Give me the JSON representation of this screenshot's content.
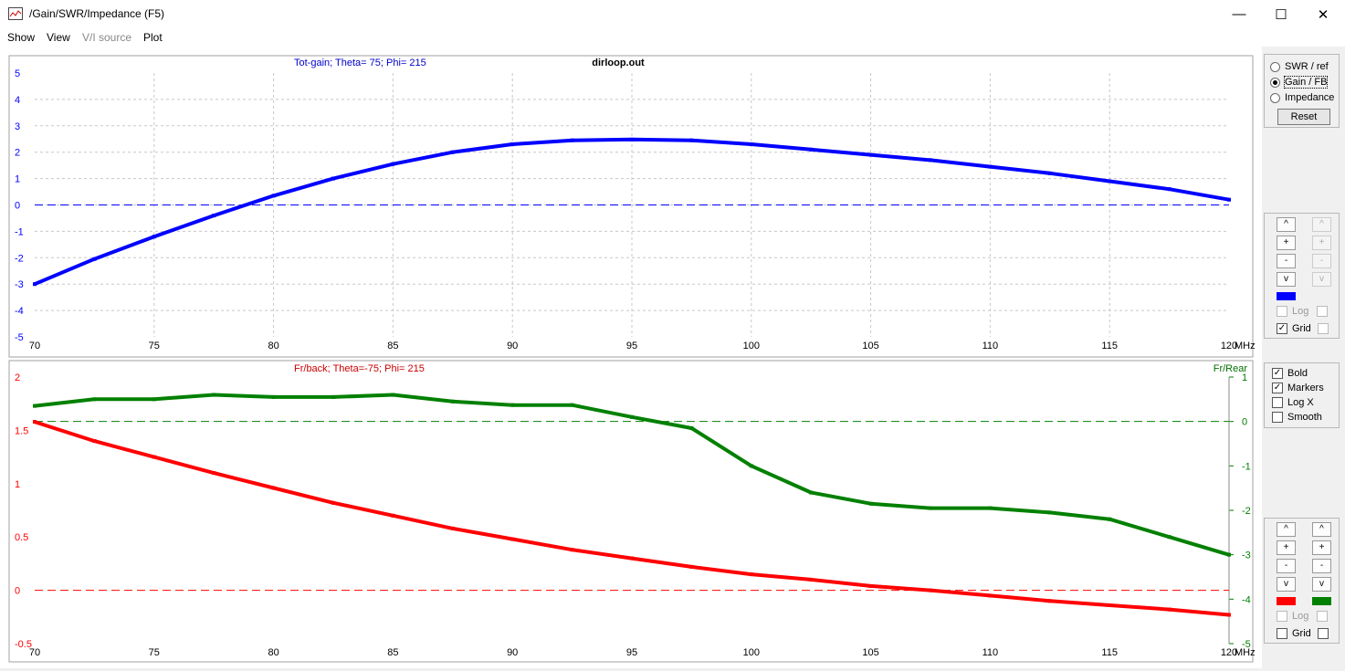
{
  "window": {
    "title": "/Gain/SWR/Impedance (F5)",
    "minimize_icon": "minimize-icon",
    "maximize_icon": "maximize-icon",
    "close_icon": "close-icon"
  },
  "menu": {
    "show": "Show",
    "view": "View",
    "vi_source": "V/I source",
    "plot": "Plot"
  },
  "plot": {
    "filename": "dirloop.out"
  },
  "chart_data": [
    {
      "type": "line",
      "title": "Tot-gain; Theta= 75; Phi= 215",
      "xlabel": "MHz",
      "xlim": [
        70,
        120
      ],
      "ylim": [
        -5,
        5
      ],
      "x_ticks": [
        "70",
        "75",
        "80",
        "85",
        "90",
        "95",
        "100",
        "105",
        "110",
        "115",
        "120"
      ],
      "y_ticks": [
        "5",
        "4",
        "3",
        "2",
        "1",
        "0",
        "-1",
        "-2",
        "-3",
        "-4",
        "-5"
      ],
      "grid": true,
      "colors": {
        "series": "#0000ff"
      },
      "series": [
        {
          "x": [
            70,
            72.5,
            75,
            77.5,
            80,
            82.5,
            85,
            87.5,
            90,
            92.5,
            95,
            97.5,
            100,
            102.5,
            105,
            107.5,
            110,
            112.5,
            115,
            117.5,
            120
          ],
          "values": [
            -3.0,
            -2.05,
            -1.2,
            -0.4,
            0.35,
            1.0,
            1.55,
            2.0,
            2.3,
            2.45,
            2.48,
            2.45,
            2.3,
            2.1,
            1.9,
            1.7,
            1.45,
            1.2,
            0.9,
            0.6,
            0.2
          ]
        }
      ]
    },
    {
      "type": "line",
      "title": "Fr/back; Theta=-75; Phi= 215",
      "right_axis_label": "Fr/Rear",
      "xlabel": "MHz",
      "xlim": [
        70,
        120
      ],
      "ylim": [
        -0.5,
        2
      ],
      "y2lim": [
        -5,
        1
      ],
      "x_ticks": [
        "70",
        "75",
        "80",
        "85",
        "90",
        "95",
        "100",
        "105",
        "110",
        "115",
        "120"
      ],
      "y_ticks": [
        "2",
        "1.5",
        "1",
        "0.5",
        "0",
        "-0.5"
      ],
      "y2_ticks": [
        "1",
        "0",
        "-1",
        "-2",
        "-3",
        "-4",
        "-5"
      ],
      "grid": false,
      "colors": {
        "left": "#ff0000",
        "right": "#008000"
      },
      "series": [
        {
          "axis": "left",
          "x": [
            70,
            72.5,
            75,
            77.5,
            80,
            82.5,
            85,
            87.5,
            90,
            92.5,
            95,
            97.5,
            100,
            102.5,
            105,
            107.5,
            110,
            112.5,
            115,
            117.5,
            120
          ],
          "values": [
            1.58,
            1.4,
            1.25,
            1.1,
            0.96,
            0.82,
            0.7,
            0.58,
            0.48,
            0.38,
            0.3,
            0.22,
            0.15,
            0.1,
            0.04,
            0.0,
            -0.05,
            -0.1,
            -0.14,
            -0.18,
            -0.23
          ]
        },
        {
          "axis": "right",
          "x": [
            70,
            72.5,
            75,
            77.5,
            80,
            82.5,
            85,
            87.5,
            90,
            92.5,
            95,
            97.5,
            100,
            102.5,
            105,
            107.5,
            110,
            112.5,
            115,
            117.5,
            120
          ],
          "values": [
            0.35,
            0.5,
            0.5,
            0.6,
            0.55,
            0.55,
            0.6,
            0.45,
            0.37,
            0.37,
            0.1,
            -0.15,
            -1.0,
            -1.6,
            -1.85,
            -1.95,
            -1.95,
            -2.05,
            -2.2,
            -2.6,
            -3.0
          ]
        }
      ]
    }
  ],
  "mode_panel": {
    "options": [
      {
        "label": "SWR / ref",
        "selected": false
      },
      {
        "label": "Gain / FB",
        "selected": true
      },
      {
        "label": "Impedance",
        "selected": false
      }
    ],
    "reset": "Reset"
  },
  "panel_top": {
    "buttons_left": [
      "^",
      "+",
      "-",
      "v"
    ],
    "buttons_right": [
      "^",
      "+",
      "-",
      "v"
    ],
    "swatch_left": "#0000ff",
    "log_label": "Log",
    "grid_label": "Grid",
    "log_checked": false,
    "grid_checked": true
  },
  "options_panel": {
    "items": [
      {
        "label": "Bold",
        "checked": true
      },
      {
        "label": "Markers",
        "checked": true
      },
      {
        "label": "Log X",
        "checked": false
      },
      {
        "label": "Smooth",
        "checked": false
      }
    ]
  },
  "panel_bottom": {
    "buttons_left": [
      "^",
      "+",
      "-",
      "v"
    ],
    "buttons_right": [
      "^",
      "+",
      "-",
      "v"
    ],
    "swatch_left": "#ff0000",
    "swatch_right": "#008000",
    "log_label": "Log",
    "grid_label": "Grid",
    "log_checked": false,
    "grid_checked": false
  }
}
